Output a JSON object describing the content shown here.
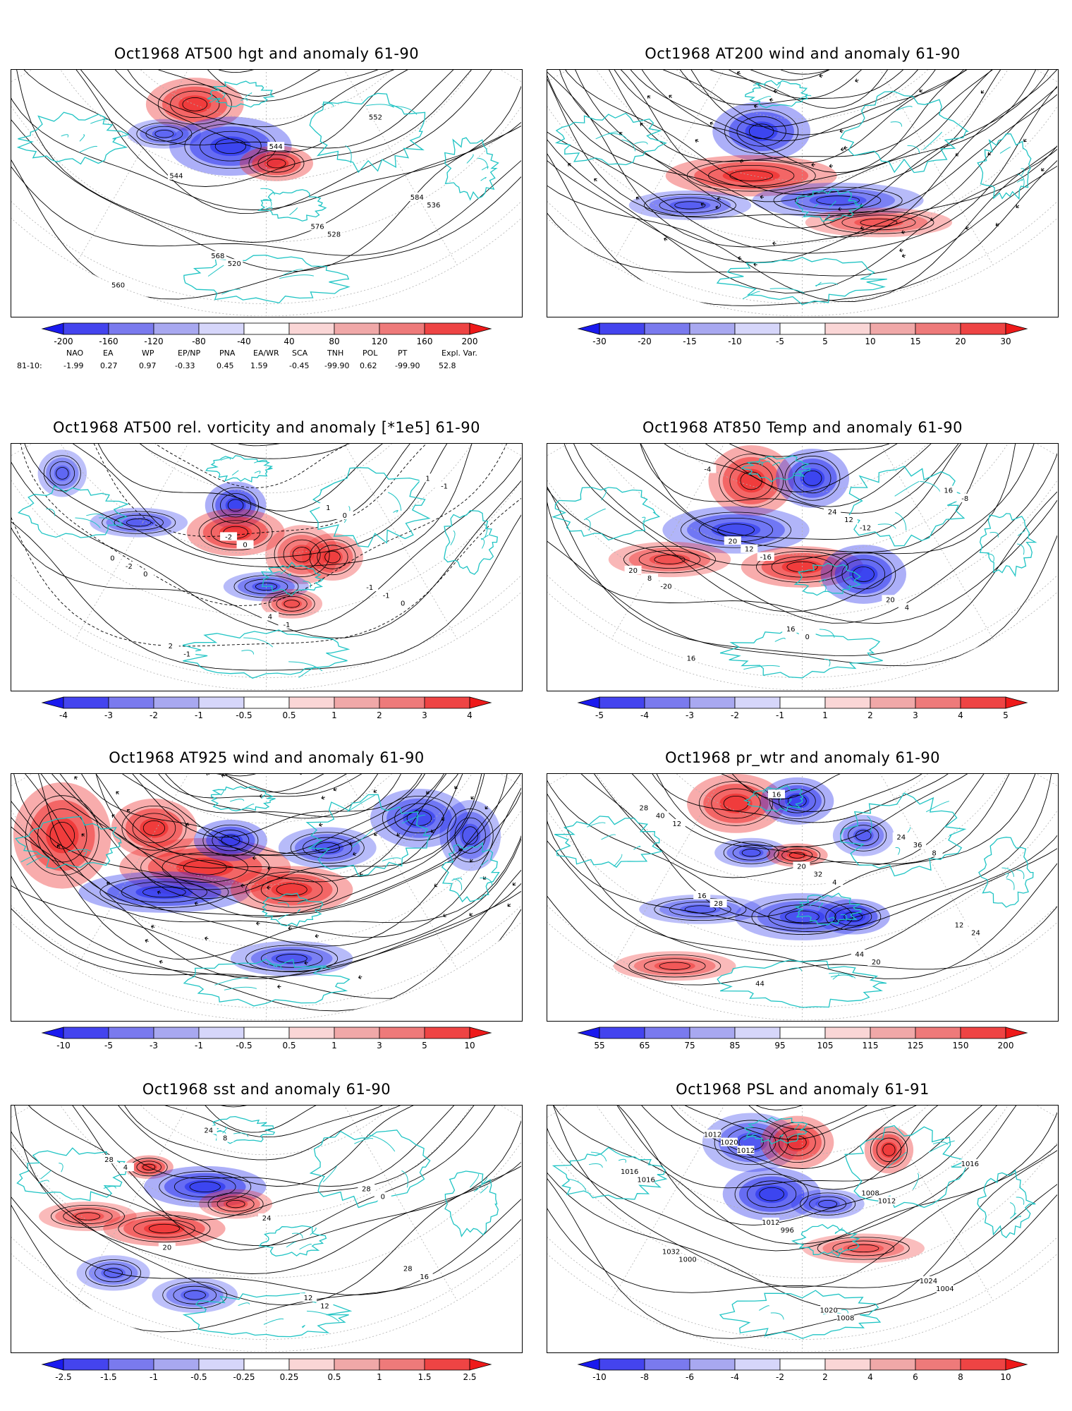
{
  "panels": [
    {
      "id": "hgt500",
      "title": "Oct1968 AT500 hgt and anomaly 61-90",
      "colorbar": [
        "-200",
        "-160",
        "-120",
        "-80",
        "-40",
        "40",
        "80",
        "120",
        "160",
        "200"
      ],
      "contour_labels": [
        "520",
        "528",
        "536",
        "544",
        "544",
        "552",
        "560",
        "568",
        "576",
        "584"
      ]
    },
    {
      "id": "wind200",
      "title": "Oct1968 AT200 wind and anomaly 61-90",
      "colorbar": [
        "-30",
        "-20",
        "-15",
        "-10",
        "-5",
        "5",
        "10",
        "15",
        "20",
        "30"
      ],
      "contour_labels": []
    },
    {
      "id": "vort500",
      "title": "Oct1968 AT500 rel. vorticity and anomaly [*1e5] 61-90",
      "colorbar": [
        "-4",
        "-3",
        "-2",
        "-1",
        "-0.5",
        "0.5",
        "1",
        "2",
        "3",
        "4"
      ],
      "contour_labels": [
        "0",
        "0",
        "0",
        "0",
        "-1",
        "-1",
        "-1",
        "-1",
        "-2",
        "-2",
        "1",
        "1",
        "2",
        "4",
        "-1",
        "0"
      ]
    },
    {
      "id": "temp850",
      "title": "Oct1968 AT850 Temp and anomaly 61-90",
      "colorbar": [
        "-5",
        "-4",
        "-3",
        "-2",
        "-1",
        "1",
        "2",
        "3",
        "4",
        "5"
      ],
      "contour_labels": [
        "-20",
        "-16",
        "-12",
        "-8",
        "-4",
        "0",
        "4",
        "8",
        "12",
        "12",
        "16",
        "16",
        "16",
        "20",
        "20",
        "20",
        "24"
      ]
    },
    {
      "id": "wind925",
      "title": "Oct1968 AT925 wind and anomaly 61-90",
      "colorbar": [
        "-10",
        "-5",
        "-3",
        "-1",
        "-0.5",
        "0.5",
        "1",
        "3",
        "5",
        "10"
      ],
      "contour_labels": []
    },
    {
      "id": "prwtr",
      "title": "Oct1968 pr_wtr and anomaly 61-90",
      "colorbar": [
        "55",
        "65",
        "75",
        "85",
        "95",
        "105",
        "115",
        "125",
        "150",
        "200"
      ],
      "contour_labels": [
        "4",
        "8",
        "12",
        "16",
        "20",
        "24",
        "28",
        "32",
        "36",
        "40",
        "44",
        "44",
        "12",
        "16",
        "20",
        "24",
        "28"
      ]
    },
    {
      "id": "sst",
      "title": "Oct1968 sst and anomaly 61-90",
      "colorbar": [
        "-2.5",
        "-1.5",
        "-1",
        "-0.5",
        "-0.25",
        "0.25",
        "0.5",
        "1",
        "1.5",
        "2.5"
      ],
      "contour_labels": [
        "0",
        "4",
        "8",
        "12",
        "16",
        "20",
        "24",
        "28",
        "28",
        "24",
        "12",
        "28"
      ]
    },
    {
      "id": "psl",
      "title": "Oct1968 PSL and anomaly 61-91",
      "colorbar": [
        "-10",
        "-8",
        "-6",
        "-4",
        "-2",
        "2",
        "4",
        "6",
        "8",
        "10"
      ],
      "contour_labels": [
        "1016",
        "1012",
        "1008",
        "1004",
        "1000",
        "996",
        "1012",
        "1016",
        "1020",
        "1020",
        "1024",
        "1032",
        "1012",
        "1008",
        "1016",
        "1012"
      ]
    }
  ],
  "index_table": {
    "headers": [
      "NAO",
      "EA",
      "WP",
      "EP/NP",
      "PNA",
      "EA/WR",
      "SCA",
      "TNH",
      "POL",
      "PT",
      "Expl. Var."
    ],
    "row_label": "81-10:",
    "values": [
      "-1.99",
      "0.27",
      "0.97",
      "-0.33",
      "0.45",
      "1.59",
      "-0.45",
      "-99.90",
      "0.62",
      "-99.90",
      "52.8"
    ]
  },
  "colors": {
    "coastline": "#20c4c4",
    "neg_strong": "#3030ee",
    "pos_strong": "#ee2020",
    "graticule": "#b0b0b0"
  }
}
